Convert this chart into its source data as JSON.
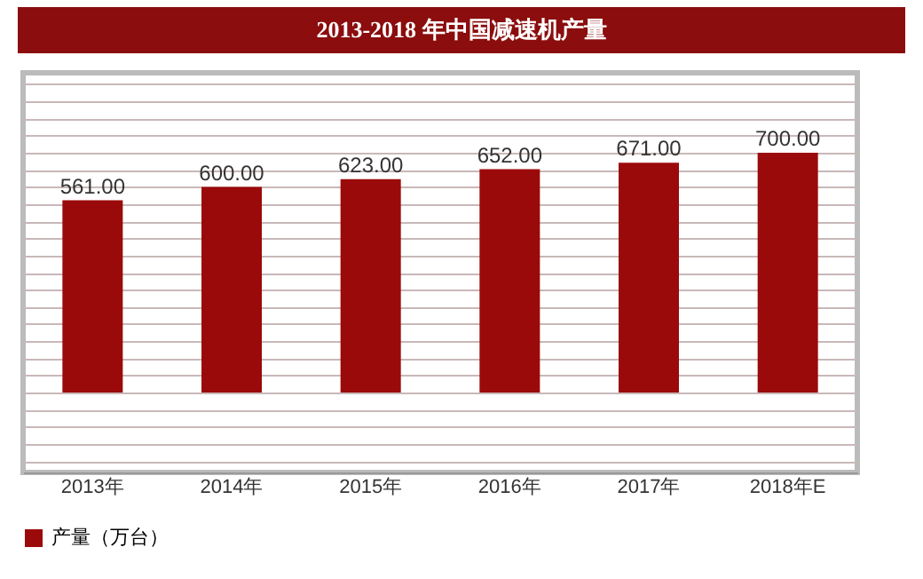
{
  "chart_data": {
    "type": "bar",
    "title": "2013-2018 年中国减速机产量",
    "categories": [
      "2013年",
      "2014年",
      "2015年",
      "2016年",
      "2017年",
      "2018年E"
    ],
    "series": [
      {
        "name": "产量（万台）",
        "color": "#9b0a0a",
        "values": [
          561,
          600,
          623,
          652,
          671,
          700
        ],
        "value_labels": [
          "561.00",
          "600.00",
          "623.00",
          "652.00",
          "671.00",
          "700.00"
        ]
      }
    ],
    "grid": "y",
    "legend": "bottom"
  }
}
